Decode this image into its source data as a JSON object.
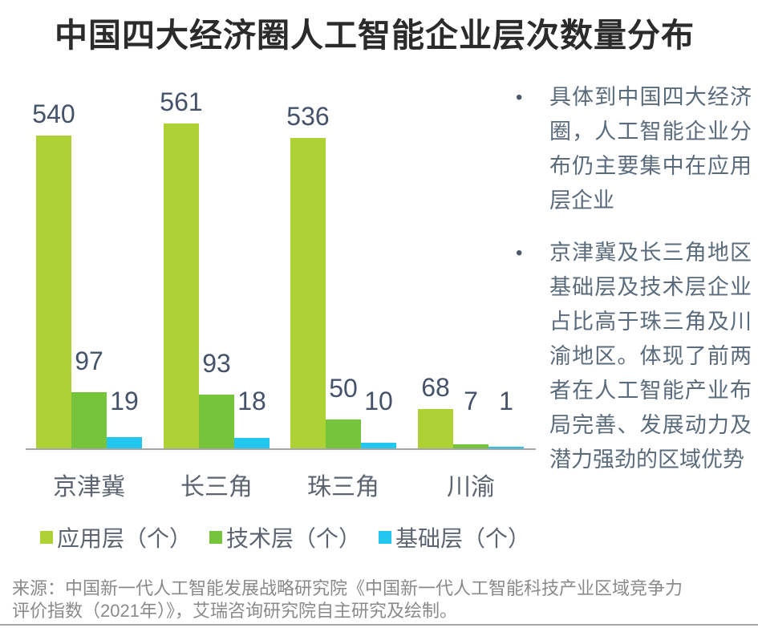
{
  "title": "中国四大经济圈人工智能企业层次数量分布",
  "chart_data": {
    "type": "bar",
    "categories": [
      "京津冀",
      "长三角",
      "珠三角",
      "川渝"
    ],
    "series": [
      {
        "name": "应用层（个）",
        "color": "#aed236",
        "values": [
          540,
          561,
          536,
          68
        ]
      },
      {
        "name": "技术层（个）",
        "color": "#76c33c",
        "values": [
          97,
          93,
          50,
          7
        ]
      },
      {
        "name": "基础层（个）",
        "color": "#22c6ee",
        "values": [
          19,
          18,
          10,
          1
        ]
      }
    ],
    "ylim": [
      0,
      561
    ],
    "grid": false,
    "legend_position": "bottom",
    "data_labels": true,
    "axis_color": "#a6a6a6",
    "label_color": "#44536a"
  },
  "insights": {
    "bullet_char": "•",
    "items": [
      "具体到中国四大经济圈，人工智能企业分布仍主要集中在应用层企业",
      "京津冀及长三角地区基础层及技术层企业占比高于珠三角及川渝地区。体现了前两者在人工智能产业布局完善、发展动力及潜力强劲的区域优势"
    ]
  },
  "source": {
    "line1": "来源：中国新一代人工智能发展战略研究院《中国新一代人工智能科技产业区域竞争力",
    "line2": "评价指数（2021年）》，艾瑞咨询研究院自主研究及绘制。"
  }
}
